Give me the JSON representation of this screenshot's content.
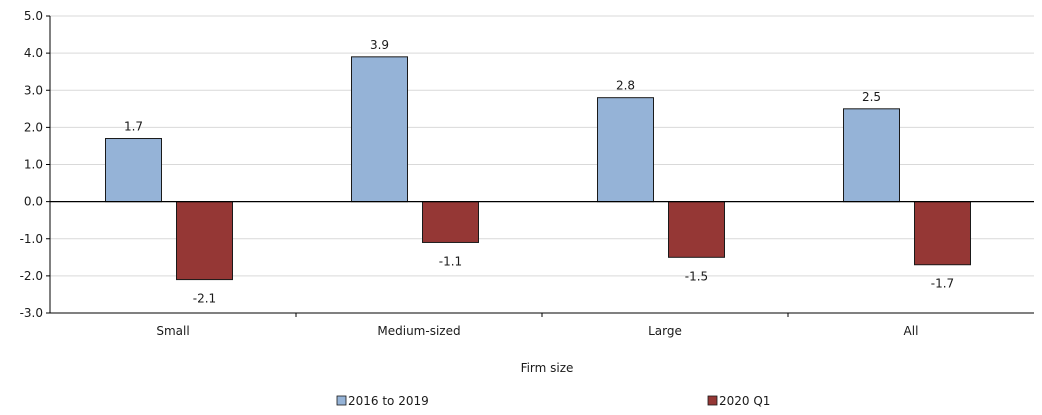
{
  "chart_data": {
    "type": "bar",
    "categories": [
      "Small",
      "Medium-sized",
      "Large",
      "All"
    ],
    "series": [
      {
        "name": "2016 to 2019",
        "values": [
          1.7,
          3.9,
          2.8,
          2.5
        ],
        "labels": [
          "1.7",
          "3.9",
          "2.8",
          "2.5"
        ],
        "color": "#95b3d7"
      },
      {
        "name": "2020 Q1",
        "values": [
          -2.1,
          -1.1,
          -1.5,
          -1.7
        ],
        "labels": [
          "-2.1",
          "-1.1",
          "-1.5",
          "-1.7"
        ],
        "color": "#953735"
      }
    ],
    "title": "",
    "xlabel": "Firm size",
    "ylabel": "",
    "ylim": [
      -3.0,
      5.0
    ],
    "yticks": [
      5.0,
      4.0,
      3.0,
      2.0,
      1.0,
      0.0,
      -1.0,
      -2.0,
      -3.0
    ],
    "ytick_labels": [
      "5.0",
      "4.0",
      "3.0",
      "2.0",
      "1.0",
      "0.0",
      "-1.0",
      "-2.0",
      "-3.0"
    ],
    "grid": "horizontal",
    "legend_position": "bottom",
    "colors": {
      "grid": "#d9d9d9",
      "axis": "#000000",
      "bar_border": "#1a1a1a"
    }
  }
}
